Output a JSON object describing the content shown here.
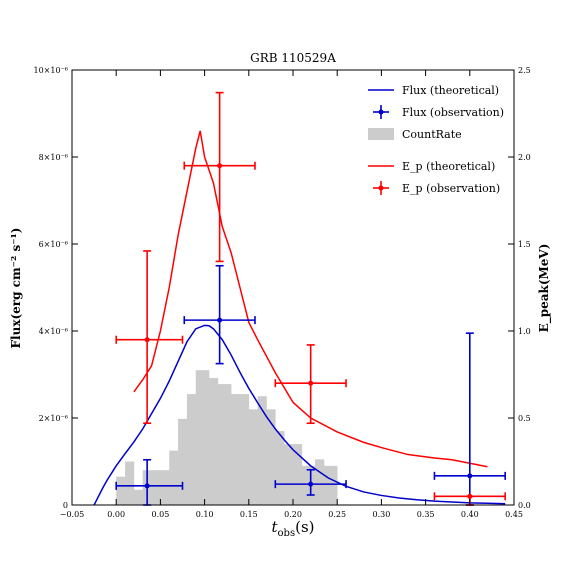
{
  "chart_data": {
    "type": "line",
    "title": "GRB 110529A",
    "xlabel": "t_obs(s)",
    "ylabel_left": "Flux(erg cm⁻² s⁻¹)",
    "ylabel_right": "E_peak(MeV)",
    "xlim": [
      -0.05,
      0.45
    ],
    "ylim_left": [
      0,
      1e-05
    ],
    "ylim_right": [
      0,
      2.5
    ],
    "x_ticks": [
      -0.05,
      0.0,
      0.05,
      0.1,
      0.15,
      0.2,
      0.25,
      0.3,
      0.35,
      0.4,
      0.45
    ],
    "x_tick_labels": [
      "−0.05",
      "0.00",
      "0.05",
      "0.10",
      "0.15",
      "0.20",
      "0.25",
      "0.30",
      "0.35",
      "0.40",
      "0.45"
    ],
    "y_left_ticks": [
      0,
      2e-06,
      4e-06,
      6e-06,
      8e-06,
      1e-05
    ],
    "y_left_tick_labels": [
      "0",
      "2×10⁻⁶",
      "4×10⁻⁶",
      "6×10⁻⁶",
      "8×10⁻⁶",
      "10×10⁻⁶"
    ],
    "y_right_ticks": [
      0,
      0.5,
      1.0,
      1.5,
      2.0,
      2.5
    ],
    "y_right_tick_labels": [
      "0.0",
      "0.5",
      "1.0",
      "1.5",
      "2.0",
      "2.5"
    ],
    "legend": [
      {
        "label": "Flux (theoretical)",
        "kind": "line",
        "color": "#0000cc"
      },
      {
        "label": "Flux (observation)",
        "kind": "errorbar",
        "color": "#0000cc"
      },
      {
        "label": "CountRate",
        "kind": "patch",
        "color": "#cccccc"
      },
      {
        "label": "E_p (theoretical)",
        "kind": "line",
        "color": "#ff0000"
      },
      {
        "label": "E_p (observation)",
        "kind": "errorbar",
        "color": "#ff0000"
      }
    ],
    "legend_position": "top-right",
    "series": [
      {
        "name": "Flux (theoretical)",
        "axis": "left",
        "color": "#0000cc",
        "x": [
          -0.025,
          -0.02,
          -0.015,
          -0.01,
          -0.005,
          0.0,
          0.01,
          0.02,
          0.03,
          0.04,
          0.05,
          0.06,
          0.07,
          0.08,
          0.09,
          0.1,
          0.105,
          0.11,
          0.12,
          0.13,
          0.14,
          0.15,
          0.16,
          0.17,
          0.18,
          0.19,
          0.2,
          0.22,
          0.24,
          0.26,
          0.28,
          0.3,
          0.32,
          0.34,
          0.36,
          0.38,
          0.4,
          0.42,
          0.44
        ],
        "y": [
          0,
          2e-07,
          4e-07,
          5.8e-07,
          7.4e-07,
          9e-07,
          1.18e-06,
          1.45e-06,
          1.75e-06,
          2.1e-06,
          2.45e-06,
          2.85e-06,
          3.3e-06,
          3.75e-06,
          4.05e-06,
          4.13e-06,
          4.12e-06,
          4.05e-06,
          3.8e-06,
          3.45e-06,
          3.05e-06,
          2.68e-06,
          2.35e-06,
          2.03e-06,
          1.75e-06,
          1.5e-06,
          1.27e-06,
          9e-07,
          6.2e-07,
          4.3e-07,
          3e-07,
          2.2e-07,
          1.6e-07,
          1.2e-07,
          9e-08,
          7e-08,
          5e-08,
          4e-08,
          3e-08
        ]
      },
      {
        "name": "E_p (theoretical)",
        "axis": "right",
        "color": "#ff0000",
        "x": [
          0.02,
          0.03,
          0.04,
          0.05,
          0.06,
          0.07,
          0.08,
          0.09,
          0.095,
          0.1,
          0.11,
          0.12,
          0.13,
          0.14,
          0.15,
          0.16,
          0.18,
          0.2,
          0.22,
          0.25,
          0.28,
          0.3,
          0.33,
          0.36,
          0.38,
          0.4,
          0.42
        ],
        "y": [
          0.65,
          0.72,
          0.8,
          1.0,
          1.25,
          1.55,
          1.8,
          2.05,
          2.15,
          2.0,
          1.85,
          1.6,
          1.45,
          1.25,
          1.05,
          0.95,
          0.76,
          0.59,
          0.5,
          0.42,
          0.36,
          0.33,
          0.29,
          0.27,
          0.26,
          0.24,
          0.22
        ]
      }
    ],
    "errorbars": [
      {
        "name": "Flux (observation)",
        "axis": "left",
        "color": "#0000cc",
        "points": [
          {
            "x": 0.035,
            "y": 4.4e-07,
            "xerr": [
              0.035,
              0.04
            ],
            "yerr": [
              4.4e-07,
              6e-07
            ]
          },
          {
            "x": 0.117,
            "y": 4.25e-06,
            "xerr": [
              0.04,
              0.04
            ],
            "yerr": [
              1e-06,
              1.25e-06
            ]
          },
          {
            "x": 0.22,
            "y": 4.8e-07,
            "xerr": [
              0.04,
              0.04
            ],
            "yerr": [
              2.5e-07,
              3.3e-07
            ]
          },
          {
            "x": 0.4,
            "y": 6.7e-07,
            "xerr": [
              0.04,
              0.04
            ],
            "yerr": [
              6.7e-07,
              3.28e-06
            ]
          }
        ]
      },
      {
        "name": "E_p (observation)",
        "axis": "right",
        "color": "#ff0000",
        "points": [
          {
            "x": 0.035,
            "y": 0.95,
            "xerr": [
              0.035,
              0.04
            ],
            "yerr": [
              0.48,
              0.51
            ]
          },
          {
            "x": 0.117,
            "y": 1.95,
            "xerr": [
              0.04,
              0.04
            ],
            "yerr": [
              0.55,
              0.42
            ]
          },
          {
            "x": 0.22,
            "y": 0.7,
            "xerr": [
              0.04,
              0.04
            ],
            "yerr": [
              0.23,
              0.22
            ]
          },
          {
            "x": 0.4,
            "y": 0.05,
            "xerr": [
              0.04,
              0.04
            ],
            "yerr": [
              0.05,
              0.0
            ]
          }
        ]
      }
    ],
    "histogram": {
      "name": "CountRate",
      "axis": "left",
      "color": "#cccccc",
      "bin_edges": [
        0.0,
        0.005,
        0.01,
        0.015,
        0.02,
        0.025,
        0.03,
        0.035,
        0.04,
        0.045,
        0.05,
        0.055,
        0.06,
        0.065,
        0.07,
        0.075,
        0.08,
        0.085,
        0.09,
        0.095,
        0.1,
        0.105,
        0.11,
        0.115,
        0.12,
        0.125,
        0.13,
        0.135,
        0.14,
        0.145,
        0.15,
        0.155,
        0.16,
        0.165,
        0.17,
        0.175,
        0.18,
        0.185,
        0.19,
        0.195,
        0.2,
        0.205,
        0.21,
        0.215,
        0.22,
        0.225,
        0.23,
        0.235,
        0.24,
        0.245,
        0.25
      ],
      "values": [
        6.5e-07,
        6.5e-07,
        1e-06,
        1e-06,
        3.5e-07,
        3.5e-07,
        8e-07,
        8e-07,
        8e-07,
        8e-07,
        8e-07,
        8e-07,
        1.25e-06,
        1.25e-06,
        1.98e-06,
        1.98e-06,
        2.55e-06,
        2.55e-06,
        3.1e-06,
        3.1e-06,
        3.1e-06,
        2.92e-06,
        2.92e-06,
        2.78e-06,
        2.78e-06,
        2.78e-06,
        2.55e-06,
        2.55e-06,
        2.55e-06,
        2.55e-06,
        2.2e-06,
        2.2e-06,
        2.5e-06,
        2.5e-06,
        2.2e-06,
        2.2e-06,
        1.7e-06,
        1.7e-06,
        1.4e-06,
        1.4e-06,
        1.4e-06,
        1.4e-06,
        9e-07,
        9e-07,
        9e-07,
        1.05e-06,
        1.05e-06,
        9e-07,
        9e-07,
        9e-07
      ]
    }
  }
}
